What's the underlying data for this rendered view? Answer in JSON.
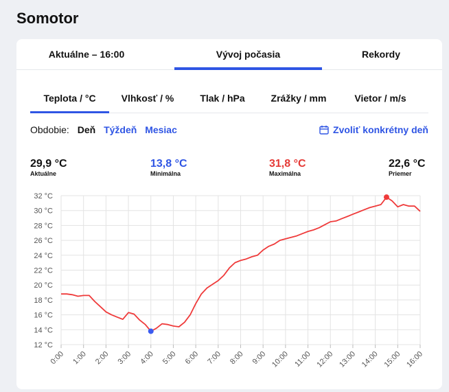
{
  "location": "Somotor",
  "tabs": {
    "current": "Aktuálne – 16:00",
    "history": "Vývoj počasia",
    "records": "Rekordy"
  },
  "metric_tabs": [
    "Teplota / °C",
    "Vlhkosť / %",
    "Tlak / hPa",
    "Zrážky / mm",
    "Vietor / m/s"
  ],
  "period": {
    "label": "Obdobie:",
    "day": "Deň",
    "week": "Týždeň",
    "month": "Mesiac"
  },
  "pick_date": "Zvoliť konkrétny deň",
  "stats": [
    {
      "value": "29,9 °C",
      "label": "Aktuálne",
      "color": "#111111"
    },
    {
      "value": "13,8 °C",
      "label": "Minimálna",
      "color": "#2f55e4"
    },
    {
      "value": "31,8 °C",
      "label": "Maximálna",
      "color": "#e53935"
    },
    {
      "value": "22,6 °C",
      "label": "Priemer",
      "color": "#111111"
    }
  ],
  "colors": {
    "accent": "#2f55e4",
    "line": "#ef3a3a",
    "min_marker": "#3b5bf0",
    "max_marker": "#ef3a3a"
  },
  "chart_data": {
    "type": "line",
    "y_unit": "°C",
    "ylim": [
      12,
      32
    ],
    "y_ticks": [
      12,
      14,
      16,
      18,
      20,
      22,
      24,
      26,
      28,
      30,
      32
    ],
    "y_tick_labels": [
      "12 °C",
      "14 °C",
      "16 °C",
      "18 °C",
      "20 °C",
      "22 °C",
      "24 °C",
      "26 °C",
      "28 °C",
      "30 °C",
      "32 °C"
    ],
    "x_tick_labels": [
      "0:00",
      "1:00",
      "2:00",
      "3:00",
      "4:00",
      "5:00",
      "6:00",
      "7:00",
      "8:00",
      "9:00",
      "10:00",
      "11:00",
      "12:00",
      "13:00",
      "14:00",
      "15:00",
      "16:00"
    ],
    "grid": true,
    "series": [
      {
        "x": [
          0,
          0.25,
          0.5,
          0.75,
          1,
          1.25,
          1.5,
          1.75,
          2,
          2.25,
          2.5,
          2.75,
          3,
          3.25,
          3.5,
          3.75,
          4,
          4.25,
          4.5,
          4.75,
          5,
          5.25,
          5.5,
          5.75,
          6,
          6.25,
          6.5,
          6.75,
          7,
          7.25,
          7.5,
          7.75,
          8,
          8.25,
          8.5,
          8.75,
          9,
          9.25,
          9.5,
          9.75,
          10,
          10.25,
          10.5,
          10.75,
          11,
          11.25,
          11.5,
          11.75,
          12,
          12.25,
          12.5,
          12.75,
          13,
          13.25,
          13.5,
          13.75,
          14,
          14.25,
          14.5,
          14.75,
          15,
          15.25,
          15.5,
          15.75,
          16
        ],
        "y": [
          18.8,
          18.8,
          18.7,
          18.5,
          18.6,
          18.6,
          17.8,
          17.1,
          16.4,
          16.0,
          15.7,
          15.4,
          16.3,
          16.1,
          15.3,
          14.7,
          13.8,
          14.2,
          14.8,
          14.7,
          14.5,
          14.4,
          15.0,
          16.0,
          17.5,
          18.8,
          19.6,
          20.1,
          20.6,
          21.3,
          22.3,
          23.0,
          23.3,
          23.5,
          23.8,
          24.0,
          24.7,
          25.2,
          25.5,
          26.0,
          26.2,
          26.4,
          26.6,
          26.9,
          27.2,
          27.4,
          27.7,
          28.1,
          28.5,
          28.6,
          28.9,
          29.2,
          29.5,
          29.8,
          30.1,
          30.4,
          30.6,
          30.8,
          31.8,
          31.3,
          30.5,
          30.8,
          30.6,
          30.6,
          29.9
        ]
      }
    ],
    "min_point": {
      "x": 4,
      "y": 13.8
    },
    "max_point": {
      "x": 14.5,
      "y": 31.8
    }
  }
}
